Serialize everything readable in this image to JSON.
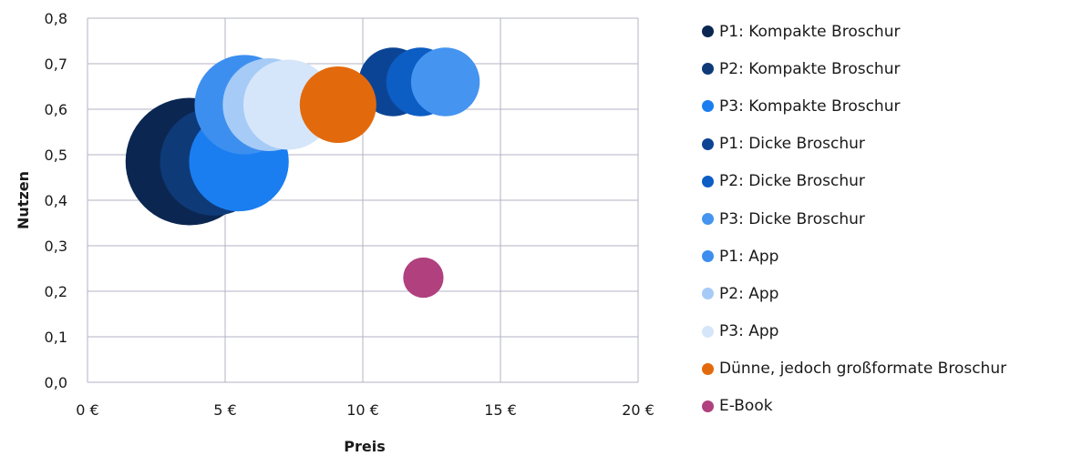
{
  "chart_data": {
    "type": "scatter",
    "xlabel": "Preis",
    "ylabel": "Nutzen",
    "xlim": [
      0,
      20
    ],
    "ylim": [
      0,
      0.8
    ],
    "x_ticks": [
      "0 €",
      "5 €",
      "10 €",
      "15 €",
      "20 €"
    ],
    "y_ticks": [
      "0,0",
      "0,1",
      "0,2",
      "0,3",
      "0,4",
      "0,5",
      "0,6",
      "0,7",
      "0,8"
    ],
    "grid": true,
    "legend_position": "right",
    "series": [
      {
        "name": "P1: Kompakte Broschur",
        "color": "#0b2751",
        "x": 3.7,
        "y": 0.485,
        "size": 1.0
      },
      {
        "name": "P2: Kompakte Broschur",
        "color": "#0f3a78",
        "x": 4.6,
        "y": 0.485,
        "size": 0.72
      },
      {
        "name": "P3: Kompakte Broschur",
        "color": "#1a7ef0",
        "x": 5.5,
        "y": 0.485,
        "size": 0.61
      },
      {
        "name": "P1: Dicke Broschur",
        "color": "#0c4495",
        "x": 11.1,
        "y": 0.66,
        "size": 0.29
      },
      {
        "name": "P2: Dicke Broschur",
        "color": "#0c5dc4",
        "x": 12.1,
        "y": 0.66,
        "size": 0.29
      },
      {
        "name": "P3: Dicke Broschur",
        "color": "#4594f0",
        "x": 13.0,
        "y": 0.66,
        "size": 0.29
      },
      {
        "name": "P1: App",
        "color": "#3d8fef",
        "x": 5.7,
        "y": 0.61,
        "size": 0.61
      },
      {
        "name": "P2: App",
        "color": "#a6cbf6",
        "x": 6.6,
        "y": 0.61,
        "size": 0.53
      },
      {
        "name": "P3: App",
        "color": "#d6e6fa",
        "x": 7.3,
        "y": 0.61,
        "size": 0.5
      },
      {
        "name": "Dünne, jedoch großformate Broschur",
        "color": "#e36a0c",
        "x": 9.1,
        "y": 0.61,
        "size": 0.36
      },
      {
        "name": "E-Book",
        "color": "#b0407e",
        "x": 12.2,
        "y": 0.23,
        "size": 0.1
      }
    ],
    "draw_order": [
      0,
      1,
      2,
      3,
      4,
      5,
      6,
      7,
      8,
      9,
      10
    ]
  }
}
